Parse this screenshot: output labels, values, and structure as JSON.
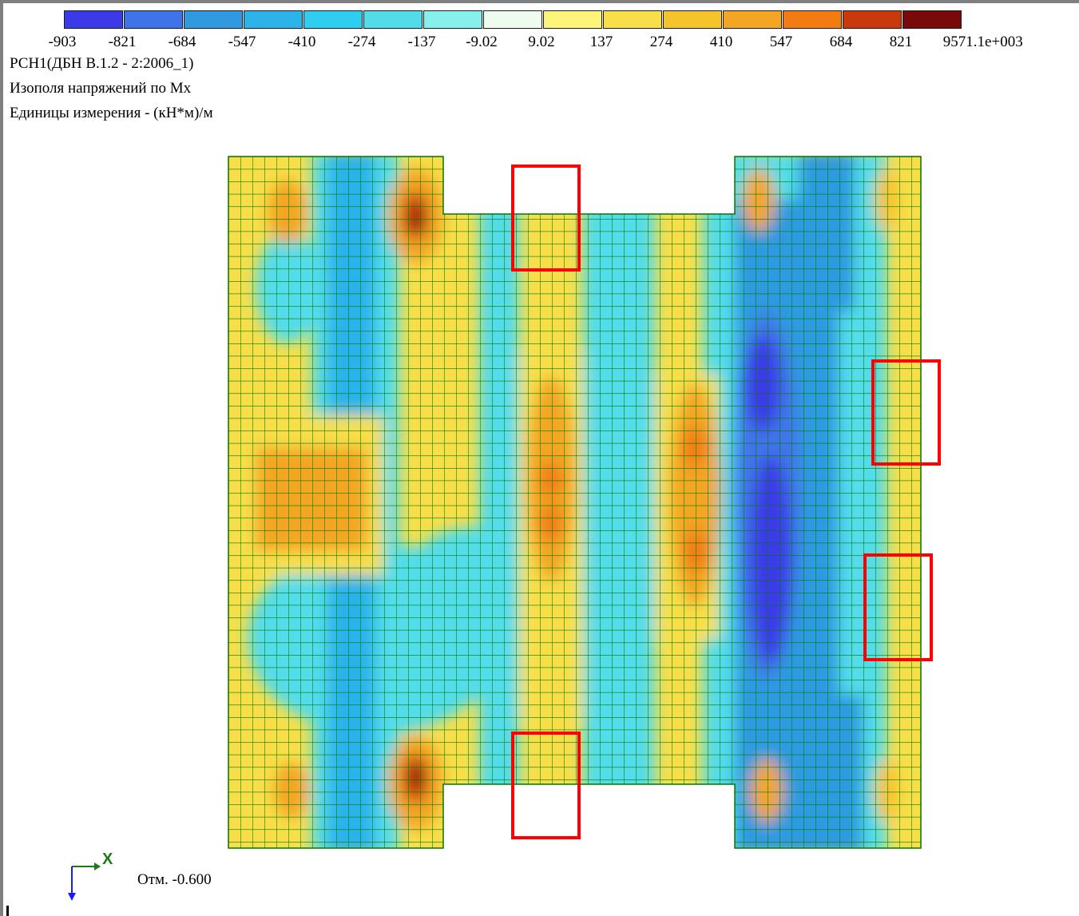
{
  "legend": {
    "colors": [
      "#3a3ae8",
      "#3f74e8",
      "#2f9ae0",
      "#2cb3ea",
      "#2fcdf0",
      "#52dcea",
      "#88f0ec",
      "#eefcf0",
      "#fbf57a",
      "#f8df4a",
      "#f5c42a",
      "#f3a624",
      "#f27b12",
      "#c83a0c",
      "#7a0a0a"
    ],
    "ticks": [
      "-903",
      "-821",
      "-684",
      "-547",
      "-410",
      "-274",
      "-137",
      "-9.02",
      "9.02",
      "137",
      "274",
      "410",
      "547",
      "684",
      "821",
      "957",
      "1.1e+003"
    ]
  },
  "info": {
    "load_case": "РСН1(ДБН В.1.2 - 2:2006_1)",
    "title": "Изополя напряжений по Mx",
    "units": "Единицы измерения - (кН*м)/м"
  },
  "axes": {
    "x_label": "X"
  },
  "elevation": "Отм. -0.600",
  "colors": {
    "mesh": "#007800",
    "highlight": "#ff0000",
    "axis_x": "#1a7a1a",
    "axis_y": "#1a1aff"
  }
}
